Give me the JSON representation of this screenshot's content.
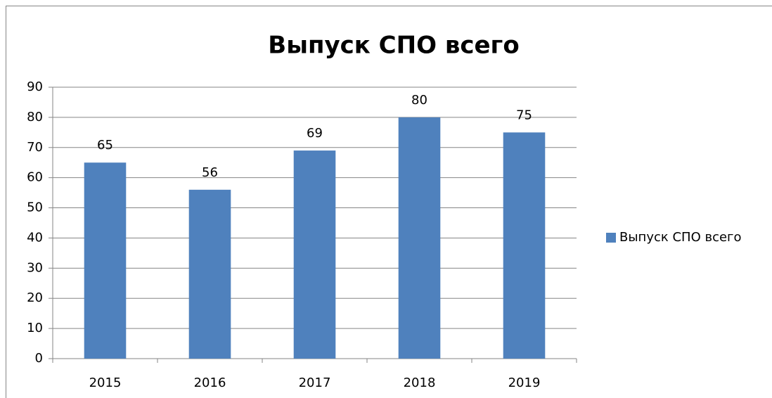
{
  "chart_data": {
    "type": "bar",
    "title": "Выпуск СПО всего",
    "categories": [
      "2015",
      "2016",
      "2017",
      "2018",
      "2019"
    ],
    "series": [
      {
        "name": "Выпуск СПО всего",
        "color": "#4f81bd",
        "values": [
          65,
          56,
          69,
          80,
          75
        ]
      }
    ],
    "ylim": [
      0,
      90
    ],
    "yticks": [
      0,
      10,
      20,
      30,
      40,
      50,
      60,
      70,
      80,
      90
    ],
    "grid": true,
    "legend": "right",
    "data_labels": true
  }
}
